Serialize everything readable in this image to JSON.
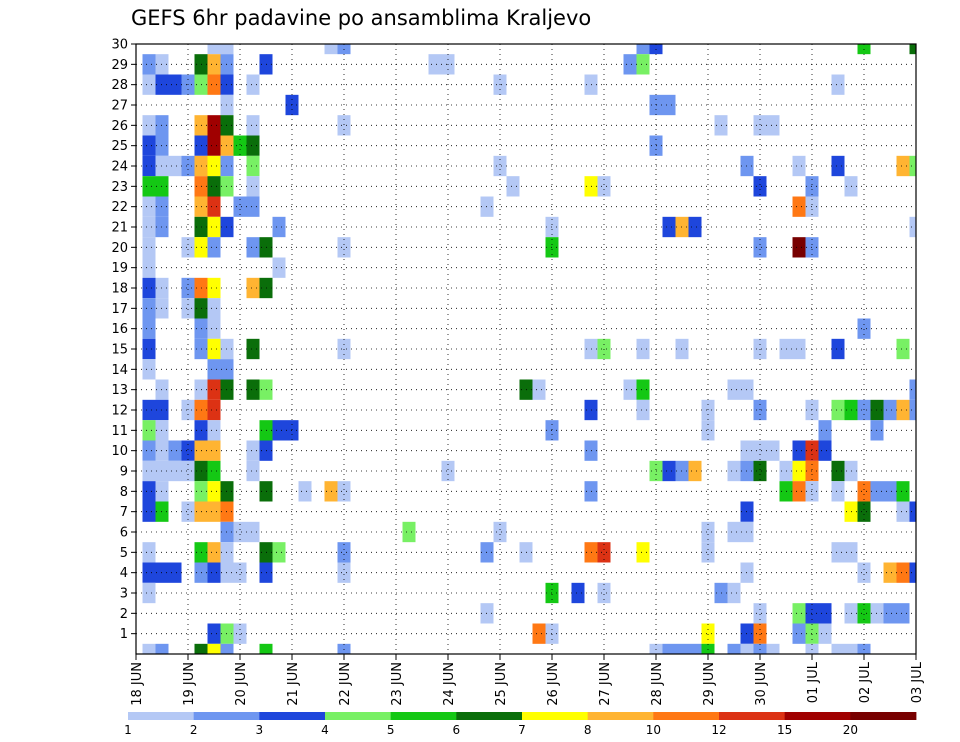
{
  "chart_data": {
    "type": "heatmap",
    "title": "GEFS 6hr padavine po ansamblima Kraljevo",
    "xlabel": "",
    "ylabel": "",
    "x_ticks": [
      "18 JUN",
      "19 JUN",
      "20 JUN",
      "21 JUN",
      "22 JUN",
      "23 JUN",
      "24 JUN",
      "25 JUN",
      "26 JUN",
      "27 JUN",
      "28 JUN",
      "29 JUN",
      "30 JUN",
      "01 JUL",
      "02 JUL",
      "03 JUL"
    ],
    "y_ticks": [
      1,
      2,
      3,
      4,
      5,
      6,
      7,
      8,
      9,
      10,
      11,
      12,
      13,
      14,
      15,
      16,
      17,
      18,
      19,
      20,
      21,
      22,
      23,
      24,
      25,
      26,
      27,
      28,
      29,
      30
    ],
    "x_range_steps": [
      0,
      60
    ],
    "step_hours": 6,
    "y_range": [
      0,
      30
    ],
    "grid": true,
    "legend": {
      "placement": "bottom",
      "boundaries": [
        "1",
        "2",
        "3",
        "4",
        "5",
        "6",
        "7",
        "8",
        "10",
        "12",
        "15",
        "20"
      ],
      "colors": [
        "#b4c8f5",
        "#6e96f0",
        "#1e46dc",
        "#78f064",
        "#14c814",
        "#0a6e0a",
        "#ffff00",
        "#ffb432",
        "#ff7814",
        "#dc3214",
        "#a00000",
        "#780000"
      ]
    },
    "cells_note": "each cell is [member, time step, color class index]; class index 0..11 maps to legend.colors",
    "cells": [
      [
        30,
        6,
        0
      ],
      [
        30,
        7,
        0
      ],
      [
        30,
        15,
        0
      ],
      [
        30,
        16,
        1
      ],
      [
        30,
        39,
        1
      ],
      [
        30,
        40,
        2
      ],
      [
        30,
        56,
        4
      ],
      [
        30,
        60,
        5
      ],
      [
        29,
        1,
        1
      ],
      [
        29,
        2,
        0
      ],
      [
        29,
        5,
        5
      ],
      [
        29,
        6,
        7
      ],
      [
        29,
        7,
        1
      ],
      [
        29,
        10,
        2
      ],
      [
        29,
        23,
        0
      ],
      [
        29,
        24,
        0
      ],
      [
        29,
        38,
        1
      ],
      [
        29,
        39,
        3
      ],
      [
        28,
        1,
        0
      ],
      [
        28,
        2,
        2
      ],
      [
        28,
        3,
        2
      ],
      [
        28,
        4,
        1
      ],
      [
        28,
        5,
        3
      ],
      [
        28,
        6,
        8
      ],
      [
        28,
        7,
        2
      ],
      [
        28,
        9,
        0
      ],
      [
        28,
        28,
        0
      ],
      [
        28,
        35,
        0
      ],
      [
        28,
        54,
        0
      ],
      [
        27,
        7,
        0
      ],
      [
        27,
        12,
        2
      ],
      [
        27,
        40,
        1
      ],
      [
        27,
        41,
        1
      ],
      [
        26,
        1,
        0
      ],
      [
        26,
        2,
        1
      ],
      [
        26,
        5,
        7
      ],
      [
        26,
        6,
        10
      ],
      [
        26,
        7,
        5
      ],
      [
        26,
        9,
        0
      ],
      [
        26,
        16,
        0
      ],
      [
        26,
        45,
        0
      ],
      [
        26,
        48,
        0
      ],
      [
        26,
        49,
        0
      ],
      [
        25,
        1,
        2
      ],
      [
        25,
        2,
        1
      ],
      [
        25,
        5,
        2
      ],
      [
        25,
        6,
        10
      ],
      [
        25,
        7,
        7
      ],
      [
        25,
        8,
        4
      ],
      [
        25,
        9,
        5
      ],
      [
        25,
        40,
        1
      ],
      [
        24,
        1,
        2
      ],
      [
        24,
        2,
        0
      ],
      [
        24,
        3,
        0
      ],
      [
        24,
        4,
        1
      ],
      [
        24,
        5,
        7
      ],
      [
        24,
        6,
        6
      ],
      [
        24,
        7,
        1
      ],
      [
        24,
        9,
        3
      ],
      [
        24,
        28,
        0
      ],
      [
        24,
        47,
        1
      ],
      [
        24,
        51,
        0
      ],
      [
        24,
        54,
        2
      ],
      [
        24,
        59,
        7
      ],
      [
        24,
        60,
        3
      ],
      [
        23,
        1,
        4
      ],
      [
        23,
        2,
        4
      ],
      [
        23,
        5,
        8
      ],
      [
        23,
        6,
        5
      ],
      [
        23,
        7,
        3
      ],
      [
        23,
        9,
        0
      ],
      [
        23,
        29,
        0
      ],
      [
        23,
        35,
        6
      ],
      [
        23,
        36,
        0
      ],
      [
        23,
        48,
        2
      ],
      [
        23,
        52,
        1
      ],
      [
        23,
        55,
        0
      ],
      [
        22,
        1,
        0
      ],
      [
        22,
        2,
        1
      ],
      [
        22,
        5,
        7
      ],
      [
        22,
        6,
        9
      ],
      [
        22,
        8,
        1
      ],
      [
        22,
        9,
        1
      ],
      [
        22,
        27,
        0
      ],
      [
        22,
        51,
        8
      ],
      [
        22,
        52,
        0
      ],
      [
        21,
        1,
        0
      ],
      [
        21,
        2,
        1
      ],
      [
        21,
        5,
        5
      ],
      [
        21,
        6,
        6
      ],
      [
        21,
        7,
        2
      ],
      [
        21,
        11,
        1
      ],
      [
        21,
        32,
        0
      ],
      [
        21,
        41,
        2
      ],
      [
        21,
        42,
        7
      ],
      [
        21,
        43,
        2
      ],
      [
        21,
        60,
        0
      ],
      [
        20,
        1,
        0
      ],
      [
        20,
        4,
        0
      ],
      [
        20,
        5,
        6
      ],
      [
        20,
        6,
        1
      ],
      [
        20,
        9,
        1
      ],
      [
        20,
        10,
        5
      ],
      [
        20,
        16,
        0
      ],
      [
        20,
        32,
        4
      ],
      [
        20,
        48,
        1
      ],
      [
        20,
        51,
        11
      ],
      [
        20,
        52,
        1
      ],
      [
        19,
        1,
        0
      ],
      [
        19,
        11,
        0
      ],
      [
        18,
        1,
        2
      ],
      [
        18,
        2,
        0
      ],
      [
        18,
        4,
        1
      ],
      [
        18,
        5,
        8
      ],
      [
        18,
        6,
        6
      ],
      [
        18,
        9,
        7
      ],
      [
        18,
        10,
        5
      ],
      [
        17,
        1,
        1
      ],
      [
        17,
        2,
        0
      ],
      [
        17,
        4,
        0
      ],
      [
        17,
        5,
        5
      ],
      [
        17,
        6,
        0
      ],
      [
        16,
        1,
        1
      ],
      [
        16,
        5,
        1
      ],
      [
        16,
        6,
        0
      ],
      [
        16,
        56,
        1
      ],
      [
        15,
        1,
        2
      ],
      [
        15,
        5,
        1
      ],
      [
        15,
        6,
        6
      ],
      [
        15,
        7,
        0
      ],
      [
        15,
        9,
        5
      ],
      [
        15,
        16,
        0
      ],
      [
        15,
        35,
        0
      ],
      [
        15,
        36,
        3
      ],
      [
        15,
        39,
        0
      ],
      [
        15,
        42,
        0
      ],
      [
        15,
        48,
        0
      ],
      [
        15,
        50,
        0
      ],
      [
        15,
        51,
        0
      ],
      [
        15,
        54,
        2
      ],
      [
        15,
        59,
        3
      ],
      [
        14,
        1,
        0
      ],
      [
        14,
        6,
        1
      ],
      [
        14,
        7,
        1
      ],
      [
        13,
        2,
        0
      ],
      [
        13,
        5,
        0
      ],
      [
        13,
        6,
        9
      ],
      [
        13,
        7,
        5
      ],
      [
        13,
        9,
        5
      ],
      [
        13,
        10,
        3
      ],
      [
        13,
        30,
        5
      ],
      [
        13,
        31,
        0
      ],
      [
        13,
        38,
        0
      ],
      [
        13,
        39,
        4
      ],
      [
        13,
        46,
        0
      ],
      [
        13,
        47,
        0
      ],
      [
        13,
        60,
        1
      ],
      [
        12,
        1,
        2
      ],
      [
        12,
        2,
        2
      ],
      [
        12,
        4,
        0
      ],
      [
        12,
        5,
        8
      ],
      [
        12,
        6,
        9
      ],
      [
        12,
        35,
        2
      ],
      [
        12,
        39,
        0
      ],
      [
        12,
        44,
        0
      ],
      [
        12,
        48,
        1
      ],
      [
        12,
        52,
        0
      ],
      [
        12,
        54,
        3
      ],
      [
        12,
        55,
        4
      ],
      [
        12,
        56,
        1
      ],
      [
        12,
        57,
        5
      ],
      [
        12,
        58,
        1
      ],
      [
        12,
        59,
        7
      ],
      [
        12,
        60,
        1
      ],
      [
        11,
        1,
        3
      ],
      [
        11,
        2,
        0
      ],
      [
        11,
        5,
        2
      ],
      [
        11,
        6,
        0
      ],
      [
        11,
        10,
        4
      ],
      [
        11,
        11,
        2
      ],
      [
        11,
        12,
        2
      ],
      [
        11,
        32,
        1
      ],
      [
        11,
        44,
        0
      ],
      [
        11,
        53,
        1
      ],
      [
        11,
        57,
        1
      ],
      [
        10,
        1,
        1
      ],
      [
        10,
        2,
        0
      ],
      [
        10,
        3,
        1
      ],
      [
        10,
        4,
        2
      ],
      [
        10,
        5,
        7
      ],
      [
        10,
        6,
        7
      ],
      [
        10,
        9,
        0
      ],
      [
        10,
        10,
        2
      ],
      [
        10,
        35,
        1
      ],
      [
        10,
        47,
        0
      ],
      [
        10,
        48,
        0
      ],
      [
        10,
        49,
        0
      ],
      [
        10,
        51,
        2
      ],
      [
        10,
        52,
        9
      ],
      [
        10,
        53,
        2
      ],
      [
        9,
        1,
        0
      ],
      [
        9,
        2,
        0
      ],
      [
        9,
        3,
        0
      ],
      [
        9,
        4,
        0
      ],
      [
        9,
        5,
        5
      ],
      [
        9,
        6,
        4
      ],
      [
        9,
        9,
        0
      ],
      [
        9,
        24,
        0
      ],
      [
        9,
        40,
        3
      ],
      [
        9,
        41,
        2
      ],
      [
        9,
        42,
        1
      ],
      [
        9,
        43,
        7
      ],
      [
        9,
        46,
        0
      ],
      [
        9,
        47,
        1
      ],
      [
        9,
        48,
        5
      ],
      [
        9,
        50,
        0
      ],
      [
        9,
        51,
        6
      ],
      [
        9,
        52,
        8
      ],
      [
        9,
        54,
        5
      ],
      [
        9,
        55,
        0
      ],
      [
        8,
        1,
        2
      ],
      [
        8,
        2,
        0
      ],
      [
        8,
        5,
        3
      ],
      [
        8,
        6,
        6
      ],
      [
        8,
        7,
        5
      ],
      [
        8,
        10,
        5
      ],
      [
        8,
        13,
        0
      ],
      [
        8,
        15,
        7
      ],
      [
        8,
        16,
        0
      ],
      [
        8,
        35,
        1
      ],
      [
        8,
        50,
        4
      ],
      [
        8,
        51,
        8
      ],
      [
        8,
        52,
        0
      ],
      [
        8,
        54,
        0
      ],
      [
        8,
        56,
        8
      ],
      [
        8,
        57,
        1
      ],
      [
        8,
        58,
        1
      ],
      [
        8,
        59,
        4
      ],
      [
        7,
        1,
        2
      ],
      [
        7,
        2,
        4
      ],
      [
        7,
        4,
        0
      ],
      [
        7,
        5,
        7
      ],
      [
        7,
        6,
        7
      ],
      [
        7,
        7,
        8
      ],
      [
        7,
        47,
        2
      ],
      [
        7,
        55,
        6
      ],
      [
        7,
        56,
        5
      ],
      [
        7,
        59,
        0
      ],
      [
        7,
        60,
        2
      ],
      [
        6,
        7,
        1
      ],
      [
        6,
        8,
        0
      ],
      [
        6,
        9,
        0
      ],
      [
        6,
        21,
        3
      ],
      [
        6,
        28,
        0
      ],
      [
        6,
        44,
        0
      ],
      [
        6,
        46,
        0
      ],
      [
        6,
        47,
        0
      ],
      [
        5,
        1,
        0
      ],
      [
        5,
        5,
        4
      ],
      [
        5,
        6,
        7
      ],
      [
        5,
        7,
        0
      ],
      [
        5,
        10,
        5
      ],
      [
        5,
        11,
        3
      ],
      [
        5,
        16,
        1
      ],
      [
        5,
        27,
        1
      ],
      [
        5,
        30,
        0
      ],
      [
        5,
        35,
        8
      ],
      [
        5,
        36,
        9
      ],
      [
        5,
        39,
        6
      ],
      [
        5,
        44,
        0
      ],
      [
        5,
        54,
        0
      ],
      [
        5,
        55,
        0
      ],
      [
        4,
        1,
        2
      ],
      [
        4,
        2,
        2
      ],
      [
        4,
        3,
        2
      ],
      [
        4,
        5,
        1
      ],
      [
        4,
        6,
        2
      ],
      [
        4,
        7,
        0
      ],
      [
        4,
        8,
        0
      ],
      [
        4,
        10,
        2
      ],
      [
        4,
        16,
        0
      ],
      [
        4,
        47,
        0
      ],
      [
        4,
        56,
        0
      ],
      [
        4,
        58,
        7
      ],
      [
        4,
        59,
        8
      ],
      [
        4,
        60,
        2
      ],
      [
        3,
        1,
        0
      ],
      [
        3,
        32,
        4
      ],
      [
        3,
        34,
        2
      ],
      [
        3,
        36,
        0
      ],
      [
        3,
        45,
        1
      ],
      [
        3,
        46,
        0
      ],
      [
        2,
        27,
        0
      ],
      [
        2,
        48,
        0
      ],
      [
        2,
        51,
        3
      ],
      [
        2,
        52,
        2
      ],
      [
        2,
        53,
        2
      ],
      [
        2,
        55,
        0
      ],
      [
        2,
        56,
        4
      ],
      [
        2,
        57,
        0
      ],
      [
        2,
        58,
        1
      ],
      [
        2,
        59,
        1
      ],
      [
        1,
        6,
        2
      ],
      [
        1,
        7,
        3
      ],
      [
        1,
        8,
        0
      ],
      [
        1,
        31,
        8
      ],
      [
        1,
        32,
        0
      ],
      [
        1,
        44,
        6
      ],
      [
        1,
        47,
        2
      ],
      [
        1,
        48,
        8
      ],
      [
        1,
        51,
        1
      ],
      [
        1,
        52,
        3
      ],
      [
        1,
        53,
        0
      ],
      [
        0,
        1,
        0
      ],
      [
        0,
        2,
        1
      ],
      [
        0,
        5,
        5
      ],
      [
        0,
        6,
        6
      ],
      [
        0,
        7,
        1
      ],
      [
        0,
        10,
        4
      ],
      [
        0,
        16,
        1
      ],
      [
        0,
        40,
        0
      ],
      [
        0,
        41,
        1
      ],
      [
        0,
        42,
        1
      ],
      [
        0,
        43,
        1
      ],
      [
        0,
        44,
        4
      ],
      [
        0,
        46,
        1
      ],
      [
        0,
        47,
        0
      ],
      [
        0,
        48,
        1
      ],
      [
        0,
        49,
        0
      ],
      [
        0,
        52,
        0
      ],
      [
        0,
        54,
        0
      ],
      [
        0,
        55,
        0
      ],
      [
        0,
        56,
        1
      ]
    ]
  }
}
